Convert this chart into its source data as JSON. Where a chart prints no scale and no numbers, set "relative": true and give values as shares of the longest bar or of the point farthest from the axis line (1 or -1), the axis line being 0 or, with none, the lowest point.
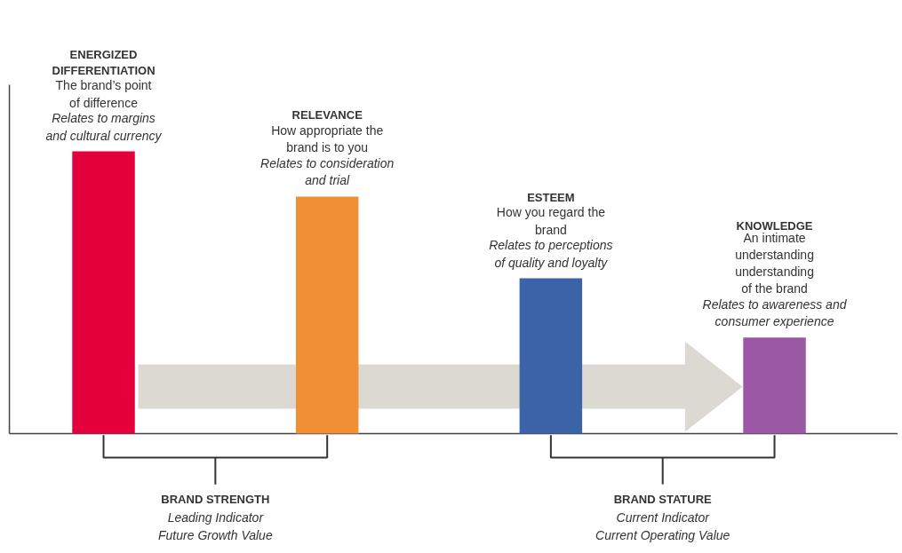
{
  "chart_data": {
    "type": "bar",
    "relative": true,
    "categories": [
      null,
      null,
      null,
      null
    ],
    "values": [
      1,
      0.84,
      0.55,
      0.34
    ],
    "colors": [
      "#e4003b",
      "#f08f34",
      "#3a63a8",
      "#9b59a5"
    ],
    "annotations": [
      "ENERGIZED\nDIFFERENTIATION",
      "The brand’s point\nof difference",
      "Relates to margins\nand cultural currency",
      "RELEVANCE",
      "How appropriate the\nbrand is to you",
      "Relates to consideration\nand trial",
      "ESTEEM",
      "How you regard the\nbrand",
      "Relates to perceptions\nof quality and loyalty",
      "KNOWLEDGE",
      "An intimate\nunderstanding\nunderstanding\nof the brand",
      "Relates to awareness and\nconsumer experience",
      "BRAND STRENGTH",
      "Leading Indicator\nFuture Growth Value",
      "BRAND STATURE",
      "Current Indicator\nCurrent Operating Value"
    ]
  }
}
